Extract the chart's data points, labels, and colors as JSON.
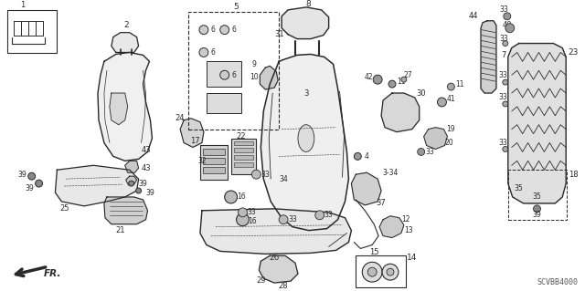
{
  "bg_color": "#ffffff",
  "line_color": "#2a2a2a",
  "fig_width": 6.4,
  "fig_height": 3.19,
  "dpi": 100,
  "diagram_code": "SCVBB4000"
}
